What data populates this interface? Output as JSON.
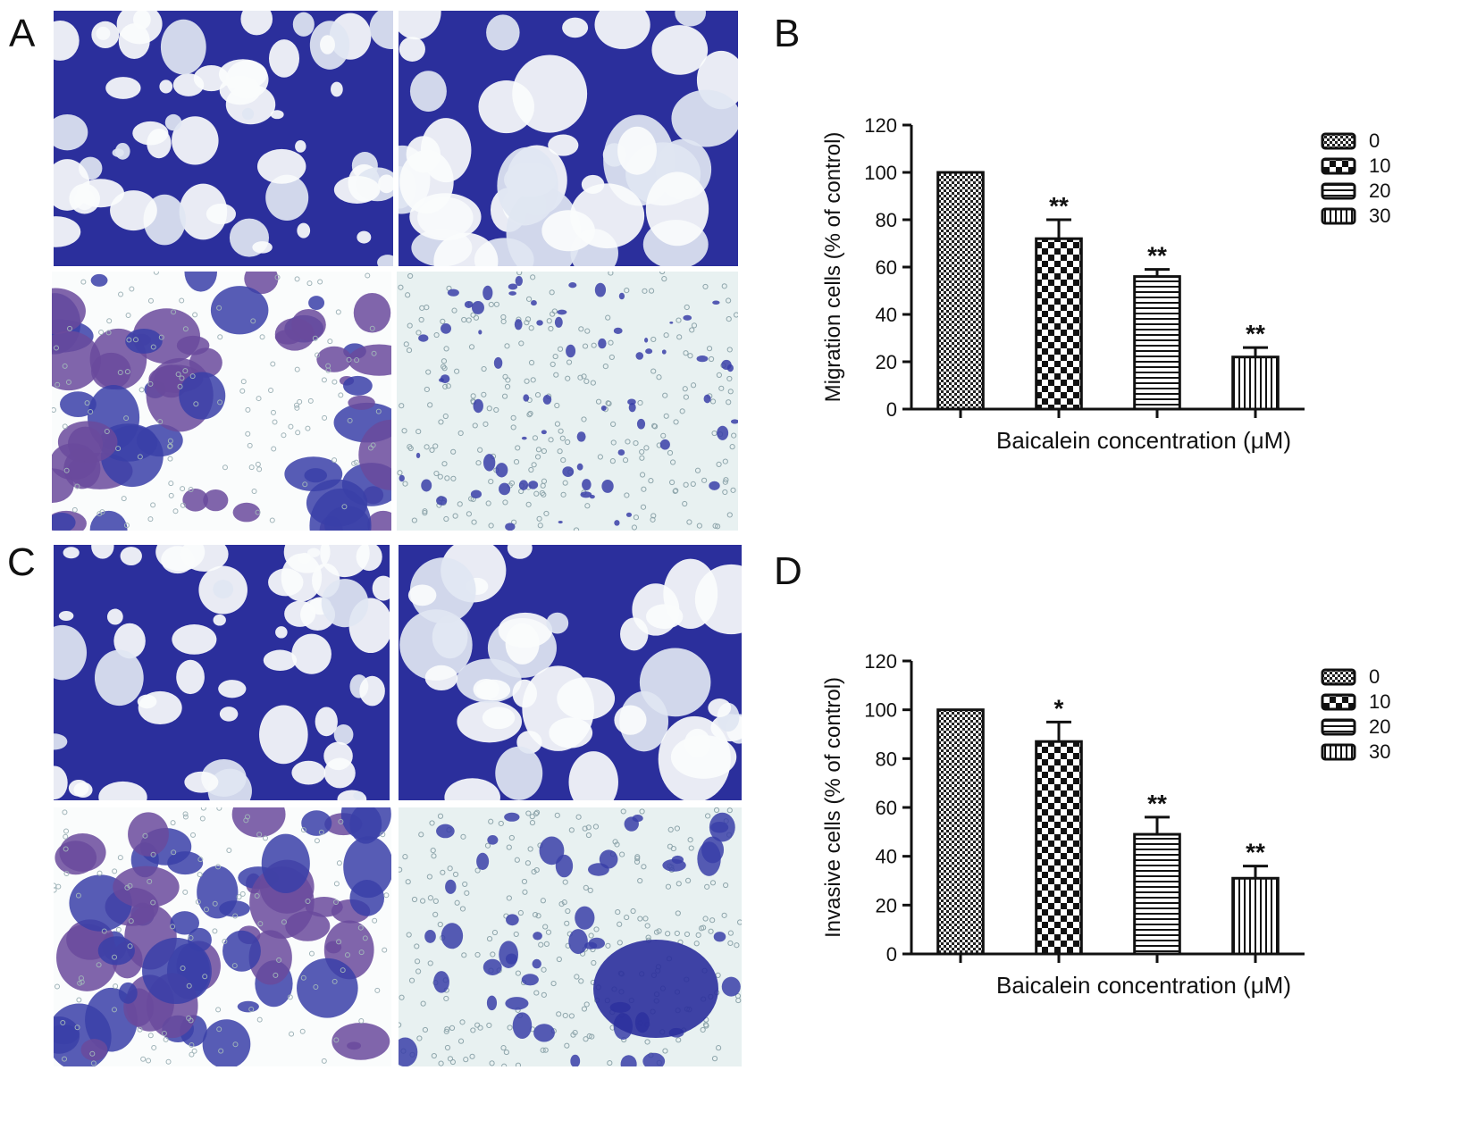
{
  "panels": {
    "a": {
      "letter": "A"
    },
    "b": {
      "letter": "B"
    },
    "c": {
      "letter": "C"
    },
    "d": {
      "letter": "D"
    }
  },
  "colors": {
    "stain_dark": "#2b2f9c",
    "stain_mid": "#3a3fa8",
    "stain_violet": "#6a4a9c",
    "membrane_light": "#e8f1f1",
    "membrane_white": "#fafcfc"
  },
  "chart_data": [
    {
      "id": "migration",
      "type": "bar",
      "title": "",
      "categories": [
        "0",
        "10",
        "20",
        "30"
      ],
      "series": [
        {
          "values": [
            100,
            72,
            56,
            22
          ],
          "error": [
            0,
            8,
            3,
            4
          ],
          "significance": [
            "",
            "**",
            "**",
            "**"
          ]
        }
      ],
      "xlabel": "Baicalein concentration (μM)",
      "ylabel": "Migration cells (% of control)",
      "ylim": [
        0,
        120
      ],
      "yticks": [
        "0",
        "20",
        "40",
        "60",
        "80",
        "100",
        "120"
      ],
      "legend": {
        "placement": "top-right",
        "entries": [
          "0",
          "10",
          "20",
          "30"
        ]
      },
      "grid": false
    },
    {
      "id": "invasion",
      "type": "bar",
      "title": "",
      "categories": [
        "0",
        "10",
        "20",
        "30"
      ],
      "series": [
        {
          "values": [
            100,
            87,
            49,
            31
          ],
          "error": [
            0,
            8,
            7,
            5
          ],
          "significance": [
            "",
            "*",
            "**",
            "**"
          ]
        }
      ],
      "xlabel": "Baicalein concentration (μM)",
      "ylabel": "Invasive cells (% of control)",
      "ylim": [
        0,
        120
      ],
      "yticks": [
        "0",
        "20",
        "40",
        "60",
        "80",
        "100",
        "120"
      ],
      "legend": {
        "placement": "top-right",
        "entries": [
          "0",
          "10",
          "20",
          "30"
        ]
      },
      "grid": false
    }
  ]
}
